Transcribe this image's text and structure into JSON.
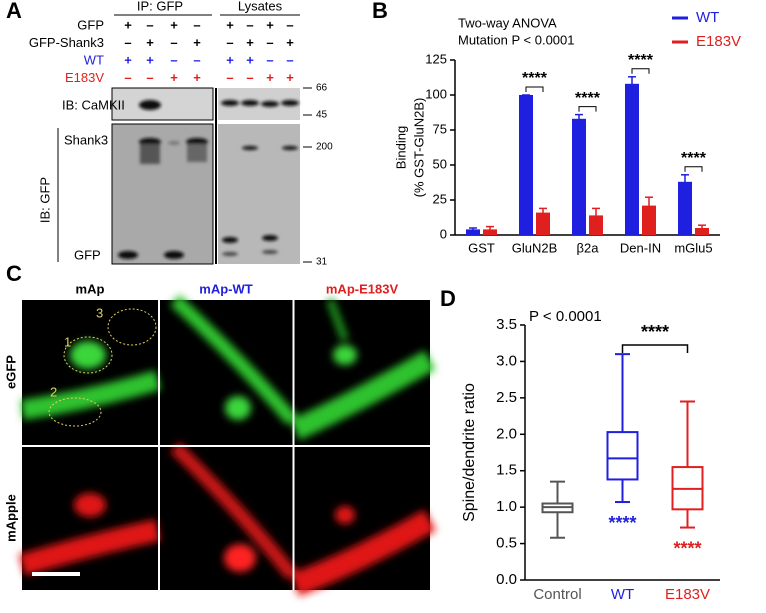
{
  "panel_letters": [
    "A",
    "B",
    "C",
    "D"
  ],
  "blot": {
    "headers": [
      "IP: GFP",
      "Lysates"
    ],
    "rows": [
      {
        "label": "GFP",
        "color": "#000000",
        "signs": [
          "+",
          "–",
          "+",
          "–",
          "+",
          "–",
          "+",
          "–"
        ]
      },
      {
        "label": "GFP-Shank3",
        "color": "#000000",
        "signs": [
          "–",
          "+",
          "–",
          "+",
          "–",
          "+",
          "–",
          "+"
        ]
      },
      {
        "label": "WT",
        "color": "#1f1fe0",
        "signs": [
          "+",
          "+",
          "–",
          "–",
          "+",
          "+",
          "–",
          "–"
        ]
      },
      {
        "label": "E183V",
        "color": "#e01f1f",
        "signs": [
          "–",
          "–",
          "+",
          "+",
          "–",
          "–",
          "+",
          "+"
        ]
      }
    ],
    "blot_labels": [
      "IB: CaMKII",
      "Shank3",
      "GFP",
      "IB: GFP"
    ],
    "markers": [
      "66",
      "45",
      "200",
      "31"
    ]
  },
  "micrographs": {
    "columns": [
      "mAp",
      "mAp-WT",
      "mAp-E183V"
    ],
    "rows": [
      "eGFP",
      "mApple"
    ],
    "regions": [
      "1",
      "2",
      "3"
    ]
  },
  "chart_data": [
    {
      "type": "bar",
      "ylabel": [
        "Binding",
        "(% GST-GluN2B)"
      ],
      "annotations": [
        "Two-way ANOVA",
        "Mutation  P < 0.0001"
      ],
      "categories": [
        "GST",
        "GluN2B",
        "β2a",
        "Den-IN",
        "mGlu5"
      ],
      "series": [
        {
          "name": "WT",
          "color": "#1f1fe0",
          "values": [
            4,
            100,
            83,
            108,
            38
          ],
          "errors": [
            1,
            0,
            3,
            5,
            5
          ]
        },
        {
          "name": "E183V",
          "color": "#e01f1f",
          "values": [
            4,
            16,
            14,
            21,
            5
          ],
          "errors": [
            2,
            3,
            5,
            6,
            2
          ]
        }
      ],
      "significance_labels": [
        null,
        "****",
        "****",
        "****",
        "****"
      ],
      "ylim": [
        0,
        125
      ],
      "yticks": [
        0,
        25,
        50,
        75,
        100,
        125
      ],
      "legend": "top-right"
    },
    {
      "type": "box",
      "ylabel": "Spine/dendrite ratio",
      "annotations": [
        "P < 0.0001",
        "****"
      ],
      "categories": [
        "Control",
        "WT",
        "E183V"
      ],
      "colors": [
        "#555555",
        "#1f1fe0",
        "#e01f1f"
      ],
      "boxes": [
        {
          "min": 0.58,
          "q1": 0.93,
          "median": 1.0,
          "q3": 1.05,
          "max": 1.35
        },
        {
          "min": 1.07,
          "q1": 1.38,
          "median": 1.67,
          "q3": 2.03,
          "max": 3.1
        },
        {
          "min": 0.72,
          "q1": 0.97,
          "median": 1.25,
          "q3": 1.55,
          "max": 2.45
        }
      ],
      "box_labels": [
        null,
        "****",
        "****"
      ],
      "ylim": [
        0,
        3.5
      ],
      "yticks": [
        {
          "value": 0,
          "label": "0.0"
        },
        {
          "value": 0.5,
          "label": "0.5"
        },
        {
          "value": 1,
          "label": "1.0"
        },
        {
          "value": 1.5,
          "label": "1.5"
        },
        {
          "value": 2,
          "label": "2.0"
        },
        {
          "value": 2.5,
          "label": "2.5"
        },
        {
          "value": 3,
          "label": "3.0"
        },
        {
          "value": 3.5,
          "label": "3.5"
        }
      ]
    }
  ]
}
